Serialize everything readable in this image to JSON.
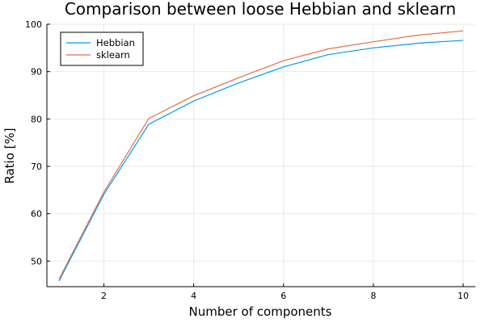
{
  "chart_data": {
    "type": "line",
    "title": "Comparison between loose Hebbian and sklearn",
    "xlabel": "Number of components",
    "ylabel": "Ratio [%]",
    "xlim": [
      0.73,
      10.27
    ],
    "ylim": [
      44.6,
      100.0
    ],
    "xticks": [
      2,
      4,
      6,
      8,
      10
    ],
    "yticks": [
      50,
      60,
      70,
      80,
      90,
      100
    ],
    "grid": true,
    "legend_position": "top-left",
    "x": [
      1,
      2,
      3,
      4,
      5,
      6,
      7,
      8,
      9,
      10
    ],
    "series": [
      {
        "name": "Hebbian",
        "color": "#009af9",
        "values": [
          45.8,
          64.1,
          78.9,
          83.8,
          87.6,
          91.0,
          93.6,
          95.0,
          96.0,
          96.6
        ]
      },
      {
        "name": "sklearn",
        "color": "#e26f46",
        "values": [
          46.2,
          64.6,
          80.1,
          84.9,
          88.7,
          92.3,
          94.8,
          96.3,
          97.7,
          98.6
        ]
      }
    ]
  }
}
